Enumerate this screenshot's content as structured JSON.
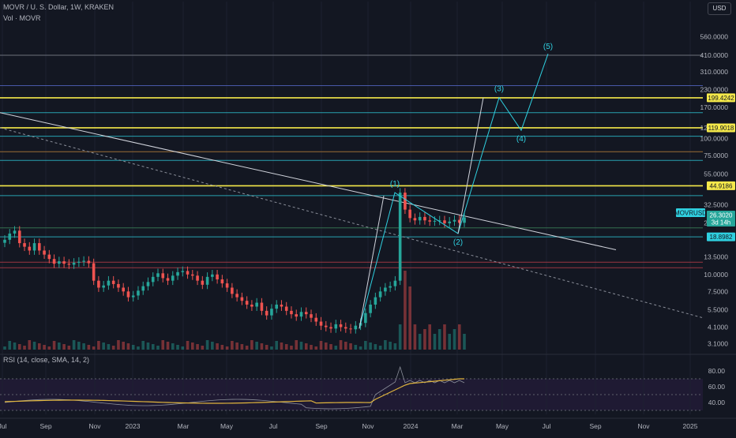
{
  "header": {
    "symbol_line": "MOVR / U. S. Dollar, 1W, KRAKEN",
    "volume_label": "Vol · MOVR",
    "rsi_label": "RSI (14, close, SMA, 14, 2)",
    "currency": "USD"
  },
  "price_axis": {
    "ticks": [
      "560.0000",
      "410.0000",
      "310.0000",
      "230.0000",
      "170.0000",
      "120.0000",
      "100.0000",
      "75.0000",
      "55.0000",
      "32.5000",
      "24.0000",
      "13.5000",
      "10.0000",
      "7.5000",
      "5.5000",
      "4.1000",
      "3.1000"
    ],
    "badges": [
      {
        "label": "199.4242",
        "style": "yellow"
      },
      {
        "label": "119.9018",
        "style": "yellow"
      },
      {
        "label": "44.9186",
        "style": "yellow"
      },
      {
        "label": "MOVRUSD",
        "style": "cyan"
      },
      {
        "label": "26.3020",
        "style": "teal"
      },
      {
        "label": "3d 14h",
        "style": "teal"
      },
      {
        "label": "18.8982",
        "style": "cyan"
      }
    ]
  },
  "rsi_axis": {
    "ticks": [
      "80.00",
      "60.00",
      "40.00"
    ]
  },
  "time_axis": {
    "ticks": [
      "Jul",
      "Sep",
      "Nov",
      "2023",
      "Mar",
      "May",
      "Jul",
      "Sep",
      "Nov",
      "2024",
      "Mar",
      "May",
      "Jul",
      "Sep",
      "Nov",
      "2025"
    ]
  },
  "wave_labels": [
    "(1)",
    "(2)",
    "(3)",
    "(4)",
    "(5)"
  ],
  "colors": {
    "background": "#131722",
    "up": "#26a69a",
    "down": "#ef5350",
    "yellow_level": "#f5e94a",
    "cyan_level": "#2fd0e0",
    "trendline": "#d1d4dc",
    "rsi_line": "#7e57c2",
    "rsi_sma": "#e0b53d"
  },
  "chart_data": {
    "type": "candlestick",
    "title": "MOVR / U. S. Dollar, 1W, KRAKEN",
    "scale": "log",
    "ylim": [
      2.8,
      700
    ],
    "horizontal_levels": [
      {
        "price": 199.4242,
        "color": "yellow"
      },
      {
        "price": 119.9018,
        "color": "yellow"
      },
      {
        "price": 44.9186,
        "color": "yellow"
      },
      {
        "price": 18.8982,
        "color": "cyan"
      },
      {
        "price": 410,
        "color": "grey"
      },
      {
        "price": 245,
        "color": "blue"
      },
      {
        "price": 155,
        "color": "cyan"
      },
      {
        "price": 104,
        "color": "cyan"
      },
      {
        "price": 80,
        "color": "orange"
      },
      {
        "price": 69,
        "color": "cyan"
      },
      {
        "price": 38,
        "color": "cyan"
      },
      {
        "price": 22,
        "color": "green"
      },
      {
        "price": 12.3,
        "color": "red"
      },
      {
        "price": 11.2,
        "color": "red"
      }
    ],
    "elliott_wave_targets": [
      {
        "label": "(1)",
        "price": 40
      },
      {
        "label": "(2)",
        "price": 20
      },
      {
        "label": "(3)",
        "price": 200
      },
      {
        "label": "(4)",
        "price": 115
      },
      {
        "label": "(5)",
        "price": 420
      }
    ],
    "last_price": 26.302,
    "rsi_levels": [
      70,
      50,
      30
    ],
    "rsi_ylim": [
      25,
      95
    ]
  }
}
